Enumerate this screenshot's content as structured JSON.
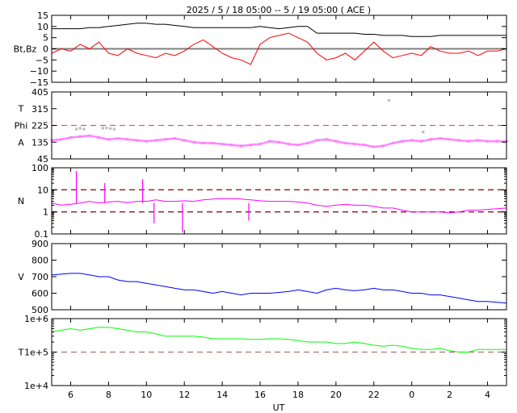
{
  "chart_data": {
    "type": "line",
    "title": "2025 /  5 / 18   05:00 -- 5 / 19   05:00 ( ACE )",
    "xlabel": "UT",
    "x_unit": "hours after 2025-05-18 05:00 UT",
    "xlim": [
      0,
      24
    ],
    "x_tick_hours": [
      1,
      3,
      5,
      7,
      9,
      11,
      13,
      15,
      17,
      19,
      21,
      23
    ],
    "x_tick_labels": [
      "6",
      "8",
      "10",
      "12",
      "14",
      "16",
      "18",
      "20",
      "22",
      "0",
      "2",
      "4"
    ],
    "sample_step_hours": 0.5,
    "panels": [
      {
        "id": "bt-bz",
        "ylabel_lines": [
          "Bt,Bz"
        ],
        "scale": "linear",
        "ylim": [
          -15,
          15
        ],
        "yticks": [
          15,
          10,
          5,
          0,
          -5,
          -10,
          -15
        ],
        "ytick_labels": [
          "15",
          "10",
          "5",
          "0",
          "−5",
          "−10",
          "−15"
        ],
        "reference_lines": [
          {
            "value": 0,
            "style": "solid",
            "color": "#808080"
          }
        ],
        "series": [
          {
            "name": "Bt",
            "color": "#000000",
            "values": [
              9,
              9,
              9,
              9,
              9.5,
              9.5,
              10,
              10.5,
              11,
              11.5,
              11.5,
              11,
              11,
              10.5,
              10,
              9.5,
              9.5,
              9.5,
              9.5,
              9.5,
              9.5,
              9.5,
              10,
              9.5,
              9,
              9.5,
              10,
              10,
              7,
              7,
              7,
              7,
              7,
              6.5,
              6.5,
              6,
              6,
              6,
              5.5,
              5.5,
              5.5,
              6,
              6,
              6,
              6,
              6,
              6,
              6,
              6
            ]
          },
          {
            "name": "Bz",
            "color": "#ff0000",
            "values": [
              -2,
              0,
              -1,
              2,
              0,
              3,
              -2,
              -3,
              0,
              -2,
              -3,
              -4,
              -2,
              -3,
              -1,
              2,
              4,
              1,
              -2,
              -4,
              -5,
              -7,
              2,
              5,
              6,
              7,
              5,
              3,
              -2,
              -5,
              -4,
              -2,
              -5,
              -1,
              3,
              -1,
              -4,
              -3,
              -2,
              -3,
              1,
              -1,
              -2,
              -2,
              -1,
              -3,
              -1,
              -1,
              0
            ]
          }
        ]
      },
      {
        "id": "phi",
        "ylabel_lines": [
          "T",
          "Phi",
          "A"
        ],
        "scale": "linear",
        "ylim": [
          45,
          405
        ],
        "yticks": [
          405,
          315,
          225,
          135,
          45
        ],
        "ytick_labels": [
          "405",
          "315",
          "225",
          "135",
          "45"
        ],
        "reference_lines": [
          {
            "value": 225,
            "style": "dashed",
            "color": "#b07070"
          }
        ],
        "series": [
          {
            "name": "Phi",
            "color": "#ff80ff",
            "marker": "dot",
            "values": [
              145,
              150,
              160,
              165,
              170,
              160,
              150,
              155,
              150,
              145,
              140,
              145,
              150,
              155,
              145,
              135,
              130,
              130,
              125,
              120,
              115,
              120,
              125,
              140,
              135,
              125,
              120,
              130,
              145,
              150,
              140,
              130,
              125,
              120,
              110,
              115,
              130,
              140,
              145,
              140,
              150,
              155,
              150,
              145,
              140,
              145,
              140,
              140,
              140
            ]
          },
          {
            "name": "Phi (away)",
            "color": "#c0c0c0",
            "marker": "dot",
            "x": [
              1.3,
              1.5,
              1.7,
              2.7,
              2.9,
              3.1,
              3.3,
              17.8,
              19.6
            ],
            "values": [
              205,
              210,
              205,
              210,
              212,
              208,
              205,
              360,
              190
            ]
          }
        ]
      },
      {
        "id": "density",
        "ylabel_lines": [
          "N"
        ],
        "scale": "log",
        "ylim": [
          0.1,
          100
        ],
        "yticks": [
          100,
          10,
          1,
          0.1
        ],
        "ytick_labels": [
          "100",
          "10",
          "1",
          "0.1"
        ],
        "reference_lines": [
          {
            "value": 10,
            "style": "dashed",
            "color": "#8b1a1a"
          },
          {
            "value": 1,
            "style": "dashed",
            "color": "#8b1a1a"
          }
        ],
        "series": [
          {
            "name": "N",
            "color": "#ff00ff",
            "values": [
              2.5,
              2,
              2.2,
              2.5,
              3,
              2.5,
              2.8,
              3,
              2.6,
              3,
              3,
              3.5,
              3,
              3,
              3.2,
              3,
              3.5,
              3.8,
              4,
              4,
              3.8,
              3.5,
              3.2,
              3,
              3,
              3,
              2.8,
              2.5,
              2,
              1.8,
              2,
              2.2,
              2,
              2,
              1.8,
              1.5,
              1.5,
              1.2,
              1,
              1,
              1,
              1,
              0.9,
              1,
              1.2,
              1.2,
              1.3,
              1.4,
              1.5
            ]
          },
          {
            "name": "N spikes",
            "color": "#ff00ff",
            "marker": "spike",
            "x": [
              1.3,
              2.8,
              4.8,
              5.4,
              6.9,
              10.4
            ],
            "values": [
              70,
              20,
              30,
              0.3,
              0.12,
              0.4
            ]
          }
        ]
      },
      {
        "id": "speed",
        "ylabel_lines": [
          "V"
        ],
        "scale": "linear",
        "ylim": [
          500,
          900
        ],
        "yticks": [
          900,
          800,
          700,
          600,
          500
        ],
        "ytick_labels": [
          "900",
          "800",
          "700",
          "600",
          "500"
        ],
        "reference_lines": [],
        "series": [
          {
            "name": "V",
            "color": "#0000ff",
            "values": [
              710,
              715,
              720,
              720,
              710,
              700,
              700,
              680,
              670,
              670,
              660,
              650,
              640,
              630,
              620,
              620,
              610,
              600,
              610,
              600,
              590,
              600,
              600,
              600,
              605,
              610,
              620,
              610,
              600,
              620,
              630,
              620,
              615,
              620,
              630,
              620,
              620,
              610,
              600,
              600,
              590,
              590,
              580,
              570,
              560,
              550,
              550,
              545,
              540
            ]
          }
        ]
      },
      {
        "id": "temperature",
        "ylabel_lines": [
          "T"
        ],
        "scale": "log",
        "ylim": [
          10000,
          1000000
        ],
        "yticks": [
          1000000,
          100000,
          10000
        ],
        "ytick_labels": [
          "1e+6",
          "1e+5",
          "1e+4"
        ],
        "reference_lines": [
          {
            "value": 100000,
            "style": "dashed",
            "color": "#b07070"
          }
        ],
        "series": [
          {
            "name": "T",
            "color": "#00ff00",
            "values": [
              400000,
              450000,
              500000,
              450000,
              500000,
              550000,
              550000,
              500000,
              450000,
              400000,
              400000,
              350000,
              300000,
              300000,
              300000,
              300000,
              280000,
              250000,
              250000,
              250000,
              250000,
              240000,
              240000,
              250000,
              250000,
              240000,
              220000,
              200000,
              200000,
              200000,
              180000,
              180000,
              200000,
              180000,
              160000,
              150000,
              160000,
              150000,
              130000,
              120000,
              120000,
              130000,
              110000,
              100000,
              100000,
              120000,
              120000,
              120000,
              120000
            ]
          }
        ]
      }
    ]
  }
}
